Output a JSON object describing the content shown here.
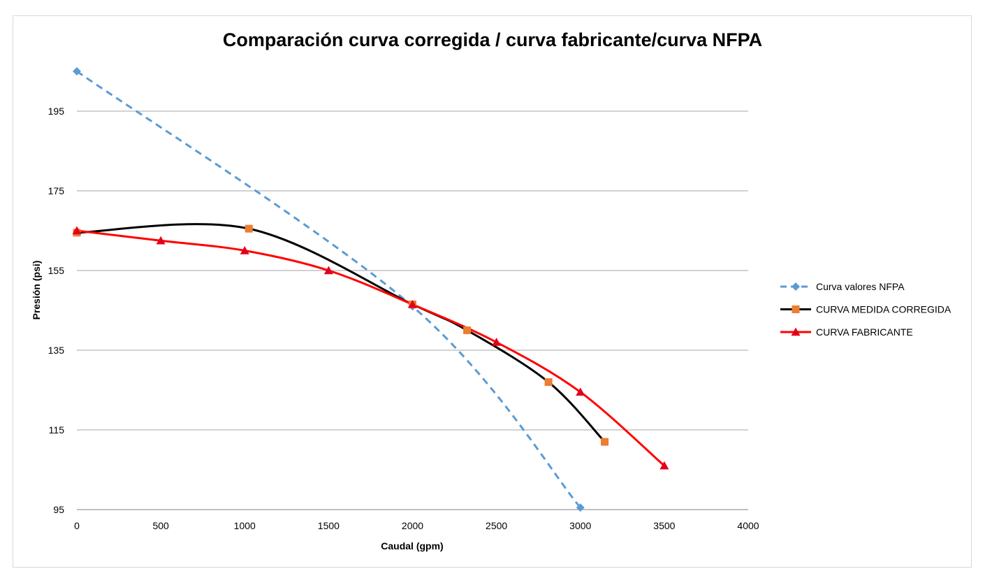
{
  "chart_data": {
    "type": "line",
    "title": "Comparación curva corregida / curva fabricante/curva NFPA",
    "xlabel": "Caudal (gpm)",
    "ylabel": "Presión (psi)",
    "xlim": [
      0,
      4000
    ],
    "ylim": [
      95,
      206
    ],
    "x_ticks": [
      "0",
      "500",
      "1000",
      "1500",
      "2000",
      "2500",
      "3000",
      "3500",
      "4000"
    ],
    "y_ticks": [
      "95",
      "115",
      "135",
      "155",
      "175",
      "195"
    ],
    "grid": "horizontal",
    "legend_position": "right",
    "series": [
      {
        "name": "Curva valores NFPA",
        "color": "#5b9bd5",
        "marker_color": "#5b9bd5",
        "marker": "diamond",
        "line_style": "dashed",
        "points": [
          [
            0,
            205
          ],
          [
            2000,
            146
          ],
          [
            3000,
            95.5
          ]
        ]
      },
      {
        "name": "CURVA MEDIDA CORREGIDA",
        "color": "#000000",
        "marker_color": "#ed7d31",
        "marker": "square",
        "line_style": "solid",
        "points": [
          [
            0,
            164.5
          ],
          [
            1025,
            165.5
          ],
          [
            2000,
            146.5
          ],
          [
            2325,
            140
          ],
          [
            2810,
            127
          ],
          [
            3145,
            112
          ]
        ]
      },
      {
        "name": "CURVA FABRICANTE",
        "color": "#ff0000",
        "marker_color": "#e3001b",
        "marker": "triangle",
        "line_style": "solid",
        "points": [
          [
            0,
            165
          ],
          [
            500,
            162.5
          ],
          [
            1000,
            160
          ],
          [
            1500,
            155
          ],
          [
            2000,
            146.5
          ],
          [
            2500,
            137
          ],
          [
            3000,
            124.5
          ],
          [
            3500,
            106
          ]
        ]
      }
    ]
  }
}
